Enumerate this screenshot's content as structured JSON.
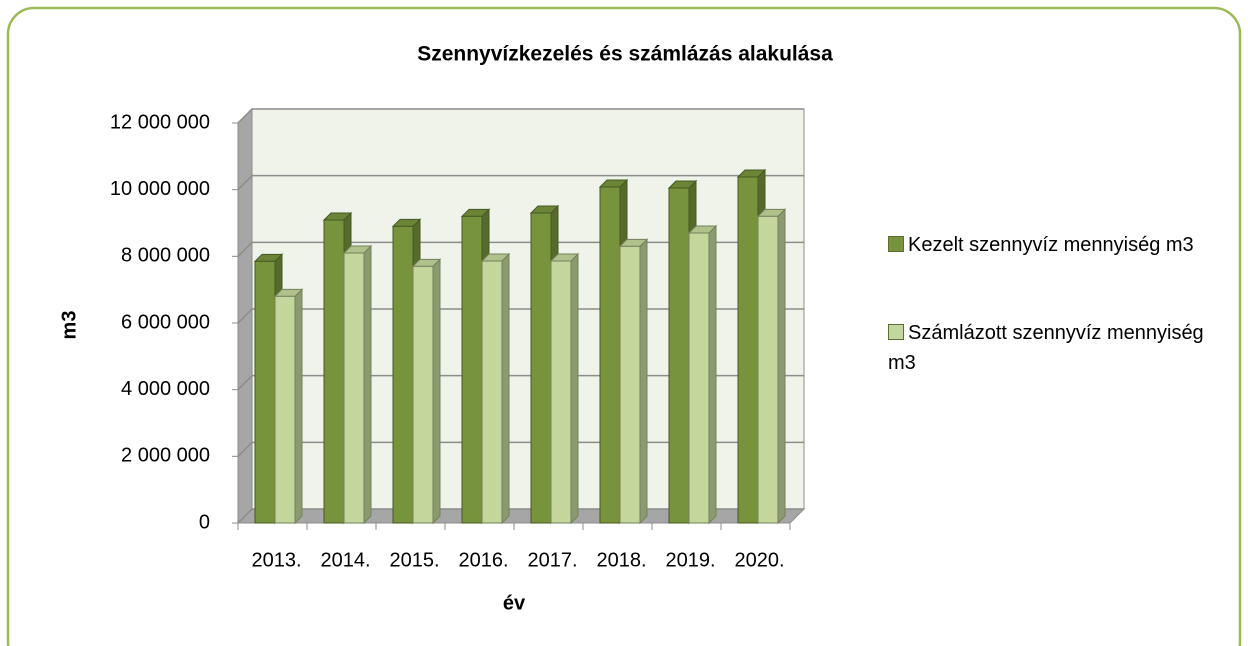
{
  "chart_data": {
    "type": "bar3d",
    "title": "Szennyvízkezelés  és számlázás alakulása",
    "x_label": "év",
    "y_label": "m3",
    "categories": [
      "2013.",
      "2014.",
      "2015.",
      "2016.",
      "2017.",
      "2018.",
      "2019.",
      "2020."
    ],
    "series": [
      {
        "name": "Kezelt szennyvíz mennyiség m3",
        "color": "#77933c",
        "values": [
          7850000,
          9090000,
          8900000,
          9200000,
          9300000,
          10080000,
          10050000,
          10380000
        ]
      },
      {
        "name": "Számlázott  szennyvíz mennyiség m3",
        "color": "#c3d69b",
        "values": [
          6800000,
          8100000,
          7700000,
          7860000,
          7860000,
          8300000,
          8700000,
          9200000
        ]
      }
    ],
    "ylim": [
      0,
      12000000
    ],
    "yticks": [
      {
        "value": 0,
        "label": "0"
      },
      {
        "value": 2000000,
        "label": "2 000 000"
      },
      {
        "value": 4000000,
        "label": "4 000 000"
      },
      {
        "value": 6000000,
        "label": "6 000 000"
      },
      {
        "value": 8000000,
        "label": "8 000 000"
      },
      {
        "value": 10000000,
        "label": "10 000 000"
      },
      {
        "value": 12000000,
        "label": "12 000 000"
      }
    ],
    "grid": true,
    "legend": "right"
  }
}
